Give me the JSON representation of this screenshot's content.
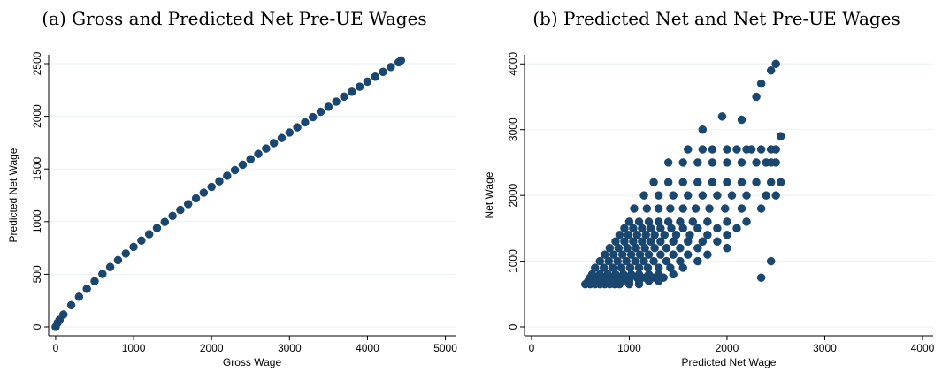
{
  "chart_data": [
    {
      "type": "scatter",
      "title": "(a) Gross and Predicted Net Pre-UE Wages",
      "x_label": "Gross Wage",
      "y_label": "Predicted Net Wage",
      "color": "#1a476f",
      "grid": true,
      "xlim": [
        -90,
        5130
      ],
      "ylim": [
        -84,
        2584
      ],
      "xticks": [
        0,
        1000,
        2000,
        3000,
        4000,
        5000
      ],
      "yticks": [
        0,
        500,
        1000,
        1500,
        2000,
        2500
      ],
      "x": [
        0,
        25,
        50,
        100,
        200,
        300,
        400,
        500,
        600,
        700,
        800,
        900,
        1000,
        1100,
        1200,
        1300,
        1400,
        1500,
        1600,
        1700,
        1800,
        1900,
        2000,
        2100,
        2200,
        2300,
        2400,
        2500,
        2600,
        2700,
        2800,
        2900,
        3000,
        3100,
        3200,
        3300,
        3400,
        3500,
        3600,
        3700,
        3800,
        3900,
        4000,
        4100,
        4200,
        4300,
        4400,
        4430
      ],
      "values": [
        0,
        39,
        67,
        118,
        207,
        287,
        362,
        434,
        503,
        569,
        634,
        697,
        760,
        820,
        880,
        939,
        997,
        1054,
        1111,
        1166,
        1221,
        1275,
        1330,
        1383,
        1435,
        1489,
        1540,
        1592,
        1643,
        1694,
        1745,
        1794,
        1846,
        1895,
        1943,
        1992,
        2043,
        2090,
        2139,
        2187,
        2233,
        2281,
        2329,
        2376,
        2422,
        2468,
        2513,
        2530
      ]
    },
    {
      "type": "scatter",
      "title": "(b) Predicted Net and Net Pre-UE Wages",
      "x_label": "Predicted Net Wage",
      "y_label": "Net Wage",
      "color": "#1a476f",
      "grid": true,
      "xlim": [
        -72,
        4109
      ],
      "ylim": [
        -134,
        4138
      ],
      "xticks": [
        0,
        1000,
        2000,
        3000,
        4000
      ],
      "yticks": [
        0,
        1000,
        2000,
        3000,
        4000
      ],
      "x": [
        550,
        600,
        650,
        700,
        750,
        800,
        850,
        900,
        1000,
        1100,
        580,
        650,
        720,
        790,
        860,
        930,
        1000,
        1100,
        1200,
        1300,
        600,
        680,
        760,
        840,
        920,
        1000,
        1080,
        1160,
        1250,
        1350,
        620,
        700,
        780,
        860,
        940,
        1020,
        1100,
        1200,
        1300,
        1450,
        650,
        740,
        830,
        920,
        1010,
        1100,
        1190,
        1300,
        1420,
        1550,
        700,
        790,
        880,
        970,
        1060,
        1150,
        1250,
        1380,
        1520,
        1700,
        750,
        840,
        930,
        1020,
        1110,
        1200,
        1320,
        1450,
        1600,
        1800,
        800,
        890,
        980,
        1070,
        1160,
        1260,
        1380,
        1520,
        1700,
        2000,
        860,
        950,
        1040,
        1130,
        1220,
        1320,
        1450,
        1600,
        1750,
        1900,
        900,
        990,
        1080,
        1170,
        1260,
        1360,
        1480,
        1620,
        1800,
        2000,
        950,
        1040,
        1130,
        1220,
        1320,
        1430,
        1550,
        1700,
        1900,
        2100,
        1000,
        1100,
        1200,
        1300,
        1400,
        1520,
        1650,
        1800,
        2000,
        2200,
        1050,
        1180,
        1300,
        1420,
        1550,
        1680,
        1820,
        1980,
        2150,
        2350,
        1150,
        1300,
        1450,
        1600,
        1750,
        1900,
        2050,
        2200,
        2400,
        2500,
        1250,
        1400,
        1550,
        1700,
        1850,
        2000,
        2150,
        2300,
        2450,
        2550,
        1400,
        1550,
        1700,
        1850,
        2000,
        2150,
        2300,
        2400,
        2450,
        2500,
        1600,
        1750,
        1850,
        2000,
        2100,
        2200,
        2250,
        2350,
        2450,
        2500,
        1950,
        1750,
        2150,
        2300,
        2350,
        2450,
        2500,
        2550,
        2450,
        2350
      ],
      "values": [
        650,
        650,
        650,
        650,
        650,
        650,
        650,
        650,
        650,
        650,
        700,
        700,
        700,
        700,
        700,
        700,
        700,
        700,
        700,
        700,
        750,
        750,
        750,
        750,
        750,
        750,
        750,
        750,
        750,
        750,
        800,
        800,
        800,
        800,
        800,
        800,
        800,
        800,
        800,
        800,
        900,
        900,
        900,
        900,
        900,
        900,
        900,
        900,
        900,
        900,
        1000,
        1000,
        1000,
        1000,
        1000,
        1000,
        1000,
        1000,
        1000,
        1000,
        1100,
        1100,
        1100,
        1100,
        1100,
        1100,
        1100,
        1100,
        1100,
        1100,
        1200,
        1200,
        1200,
        1200,
        1200,
        1200,
        1200,
        1200,
        1200,
        1200,
        1300,
        1300,
        1300,
        1300,
        1300,
        1300,
        1300,
        1300,
        1300,
        1300,
        1400,
        1400,
        1400,
        1400,
        1400,
        1400,
        1400,
        1400,
        1400,
        1400,
        1500,
        1500,
        1500,
        1500,
        1500,
        1500,
        1500,
        1500,
        1500,
        1500,
        1600,
        1600,
        1600,
        1600,
        1600,
        1600,
        1600,
        1600,
        1600,
        1600,
        1800,
        1800,
        1800,
        1800,
        1800,
        1800,
        1800,
        1800,
        1800,
        1800,
        2000,
        2000,
        2000,
        2000,
        2000,
        2000,
        2000,
        2000,
        2000,
        2000,
        2200,
        2200,
        2200,
        2200,
        2200,
        2200,
        2200,
        2200,
        2200,
        2200,
        2500,
        2500,
        2500,
        2500,
        2500,
        2500,
        2500,
        2500,
        2500,
        2500,
        2700,
        2700,
        2700,
        2700,
        2700,
        2700,
        2700,
        2700,
        2700,
        2700,
        3200,
        3000,
        3150,
        3500,
        3700,
        3900,
        4000,
        2900,
        1000,
        750
      ]
    }
  ]
}
